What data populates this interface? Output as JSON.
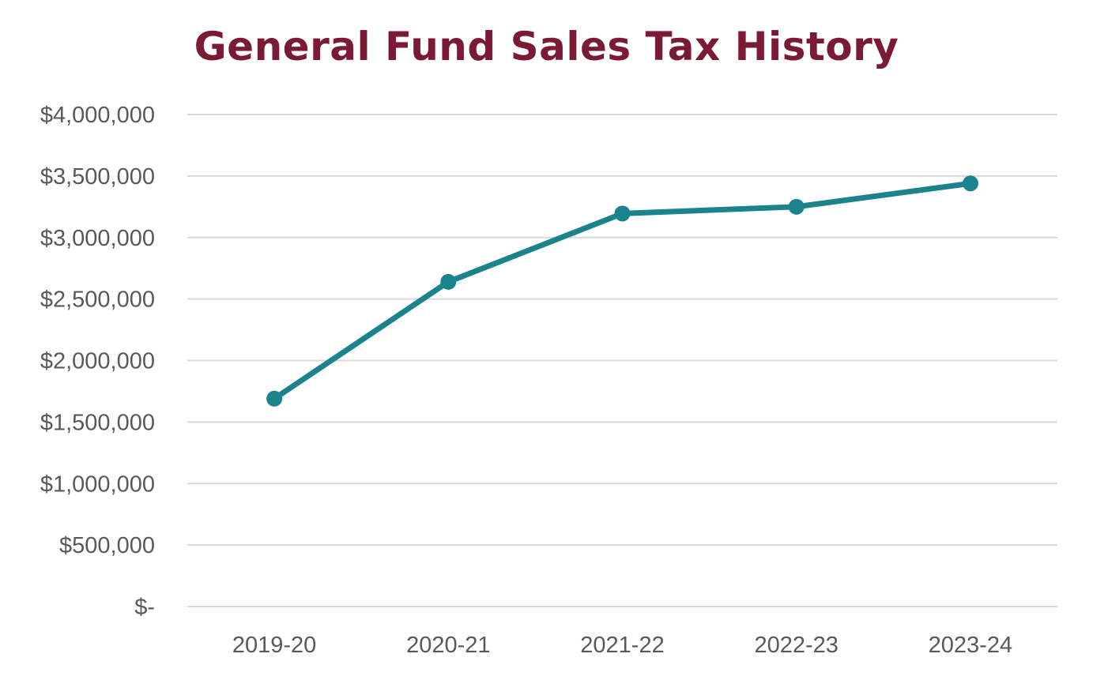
{
  "chart_data": {
    "type": "line",
    "title": "General Fund Sales Tax History",
    "xlabel": "",
    "ylabel": "",
    "categories": [
      "2019-20",
      "2020-21",
      "2021-22",
      "2022-23",
      "2023-24"
    ],
    "series": [
      {
        "name": "General Fund Sales Tax",
        "values": [
          1690000,
          2640000,
          3195000,
          3250000,
          3440000
        ],
        "color": "#1a838c"
      }
    ],
    "ylim": [
      0,
      4000000
    ],
    "yticks": [
      0,
      500000,
      1000000,
      1500000,
      2000000,
      2500000,
      3000000,
      3500000,
      4000000
    ],
    "ytick_labels": [
      "$-",
      "$500,000",
      "$1,000,000",
      "$1,500,000",
      "$2,000,000",
      "$2,500,000",
      "$3,000,000",
      "$3,500,000",
      "$4,000,000"
    ],
    "grid": true,
    "legend": "none"
  },
  "colors": {
    "title": "#7b1a35",
    "line": "#1a838c",
    "grid": "#d9d9d9",
    "tick_text": "#595959"
  }
}
